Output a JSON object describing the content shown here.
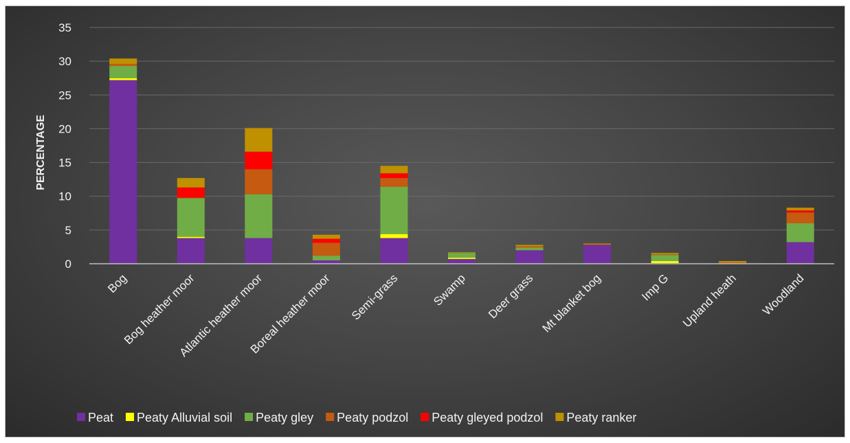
{
  "chart_data": {
    "type": "bar",
    "stacked": true,
    "title": "",
    "xlabel": "",
    "ylabel": "PERCENTAGE",
    "ylim": [
      0,
      35
    ],
    "yticks": [
      "0",
      "5",
      "10",
      "15",
      "20",
      "25",
      "30",
      "35"
    ],
    "grid": true,
    "legend_position": "bottom",
    "categories": [
      "Bog",
      "Bog heather moor",
      "Atlantic heather moor",
      "Boreal heather moor",
      "Semi-grass",
      "Swamp",
      "Deer grass",
      "Mt blanket bog",
      "Imp G",
      "Upland heath",
      "Woodland"
    ],
    "series": [
      {
        "name": "Peat",
        "color": "#7030a0",
        "values": [
          27.2,
          3.8,
          3.8,
          0.5,
          3.8,
          0.7,
          2.0,
          2.8,
          0.1,
          0.0,
          3.2
        ]
      },
      {
        "name": "Peaty Alluvial soil",
        "color": "#ffff00",
        "values": [
          0.3,
          0.2,
          0.0,
          0.0,
          0.6,
          0.2,
          0.0,
          0.0,
          0.3,
          0.0,
          0.0
        ]
      },
      {
        "name": "Peaty gley",
        "color": "#70ad47",
        "values": [
          1.8,
          5.7,
          6.5,
          0.7,
          7.0,
          0.7,
          0.4,
          0.0,
          0.9,
          0.0,
          2.8
        ]
      },
      {
        "name": "Peaty podzol",
        "color": "#c55a11",
        "values": [
          0.3,
          0.1,
          3.7,
          1.9,
          1.3,
          0.0,
          0.2,
          0.1,
          0.1,
          0.2,
          1.6
        ]
      },
      {
        "name": "Peaty gleyed podzol",
        "color": "#ff0000",
        "values": [
          0.0,
          1.5,
          2.6,
          0.6,
          0.7,
          0.0,
          0.0,
          0.0,
          0.0,
          0.0,
          0.3
        ]
      },
      {
        "name": "Peaty ranker",
        "color": "#bf9000",
        "values": [
          0.8,
          1.4,
          3.5,
          0.6,
          1.1,
          0.1,
          0.2,
          0.1,
          0.2,
          0.2,
          0.4
        ]
      }
    ]
  }
}
